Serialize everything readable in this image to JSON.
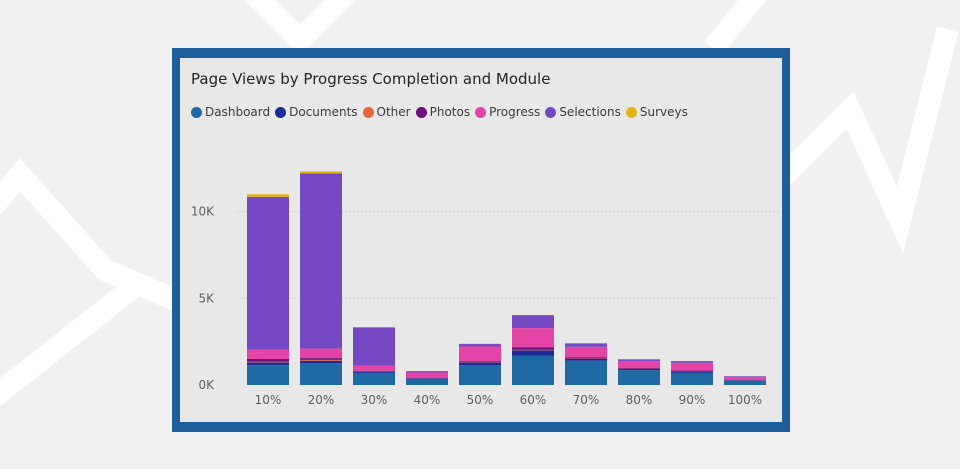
{
  "chart_data": {
    "type": "bar",
    "stacked": true,
    "title": "Page Views by Progress Completion and Module",
    "xlabel": "",
    "ylabel": "",
    "categories": [
      "10%",
      "20%",
      "30%",
      "40%",
      "50%",
      "60%",
      "70%",
      "80%",
      "90%",
      "100%"
    ],
    "y_ticks": [
      {
        "value": 0,
        "label": "0K"
      },
      {
        "value": 5000,
        "label": "5K"
      },
      {
        "value": 10000,
        "label": "10K"
      }
    ],
    "ylim": [
      0,
      12800
    ],
    "grid": true,
    "legend_position": "top-left",
    "series": [
      {
        "name": "Dashboard",
        "color": "#1f6aa5",
        "values": [
          1150,
          1250,
          700,
          350,
          1150,
          1700,
          1400,
          850,
          700,
          250
        ]
      },
      {
        "name": "Documents",
        "color": "#1a2a9a",
        "values": [
          150,
          150,
          50,
          30,
          150,
          300,
          100,
          80,
          80,
          30
        ]
      },
      {
        "name": "Other",
        "color": "#e8673a",
        "values": [
          50,
          50,
          20,
          10,
          20,
          30,
          20,
          10,
          10,
          5
        ]
      },
      {
        "name": "Photos",
        "color": "#6b0f7a",
        "values": [
          150,
          100,
          50,
          30,
          50,
          150,
          80,
          40,
          40,
          20
        ]
      },
      {
        "name": "Progress",
        "color": "#e444a5",
        "values": [
          550,
          550,
          300,
          300,
          850,
          1100,
          600,
          400,
          450,
          150
        ]
      },
      {
        "name": "Selections",
        "color": "#7649c4",
        "values": [
          8800,
          10100,
          2200,
          80,
          150,
          750,
          200,
          100,
          100,
          50
        ]
      },
      {
        "name": "Surveys",
        "color": "#e1b416",
        "values": [
          150,
          120,
          10,
          5,
          10,
          10,
          10,
          5,
          5,
          5
        ]
      }
    ]
  }
}
